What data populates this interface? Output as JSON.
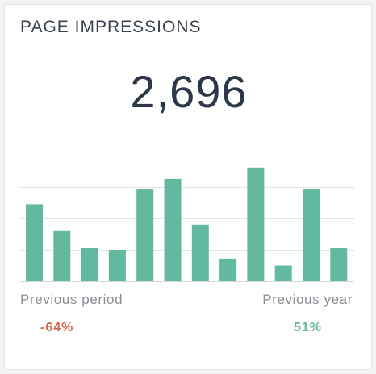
{
  "widget": {
    "title": "PAGE IMPRESSIONS",
    "value": "2,696",
    "previous_period": {
      "label": "Previous period",
      "change": "-64%",
      "color": "#d0664f"
    },
    "previous_year": {
      "label": "Previous year",
      "change": "51%",
      "color": "#5fb59a"
    }
  },
  "chart_data": {
    "type": "bar",
    "bar_color": "#63b9a0",
    "grid": true,
    "ylim": [
      0,
      4
    ],
    "values": [
      2.45,
      1.62,
      1.05,
      1.0,
      2.93,
      3.26,
      1.8,
      0.72,
      3.62,
      0.5,
      2.93,
      1.05
    ]
  }
}
